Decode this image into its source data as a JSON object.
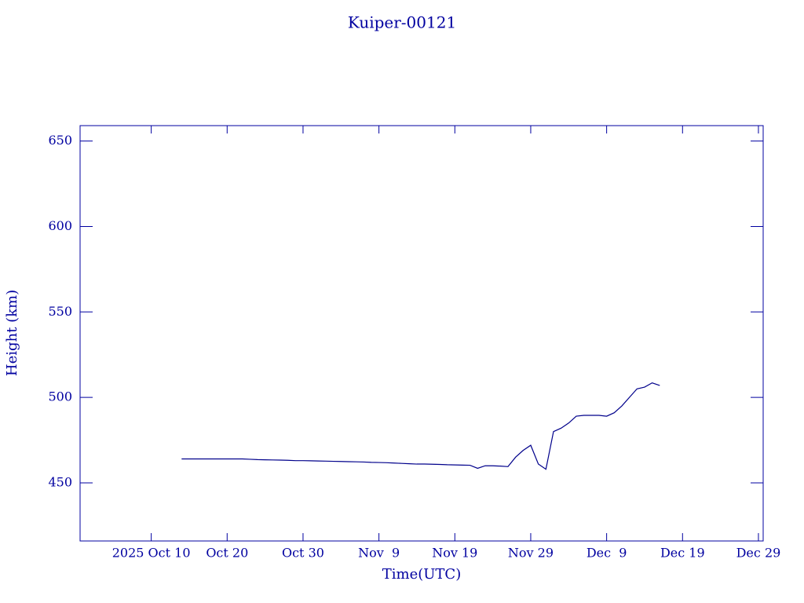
{
  "chart_data": {
    "type": "line",
    "title": "Kuiper-00121",
    "xlabel": "Time(UTC)",
    "ylabel": "Height (km)",
    "color": "#00008b",
    "xlim": [
      "2025-09-30T15:00Z",
      "2025-12-29T15:00Z"
    ],
    "xticks": [
      {
        "value": "2025-10-10",
        "label": "2025 Oct 10"
      },
      {
        "value": "2025-10-20",
        "label": "Oct 20"
      },
      {
        "value": "2025-10-30",
        "label": "Oct 30"
      },
      {
        "value": "2025-11-09",
        "label": "Nov  9"
      },
      {
        "value": "2025-11-19",
        "label": "Nov 19"
      },
      {
        "value": "2025-11-29",
        "label": "Nov 29"
      },
      {
        "value": "2025-12-09",
        "label": "Dec  9"
      },
      {
        "value": "2025-12-19",
        "label": "Dec 19"
      },
      {
        "value": "2025-12-29",
        "label": "Dec 29"
      }
    ],
    "ylim": [
      416,
      659
    ],
    "yticks": [
      450,
      500,
      550,
      600,
      650
    ],
    "x": [
      "2025-10-14",
      "2025-10-15",
      "2025-10-16",
      "2025-10-17",
      "2025-10-18",
      "2025-10-19",
      "2025-10-20",
      "2025-10-21",
      "2025-10-22",
      "2025-10-23",
      "2025-10-24",
      "2025-10-25",
      "2025-10-26",
      "2025-10-27",
      "2025-10-28",
      "2025-10-29",
      "2025-10-30",
      "2025-10-31",
      "2025-11-01",
      "2025-11-02",
      "2025-11-03",
      "2025-11-04",
      "2025-11-05",
      "2025-11-06",
      "2025-11-07",
      "2025-11-08",
      "2025-11-09",
      "2025-11-10",
      "2025-11-11",
      "2025-11-12",
      "2025-11-13",
      "2025-11-14",
      "2025-11-15",
      "2025-11-16",
      "2025-11-17",
      "2025-11-18",
      "2025-11-19",
      "2025-11-20",
      "2025-11-21",
      "2025-11-22",
      "2025-11-23",
      "2025-11-24",
      "2025-11-25",
      "2025-11-26",
      "2025-11-27",
      "2025-11-28",
      "2025-11-29",
      "2025-11-30",
      "2025-12-01",
      "2025-12-02",
      "2025-12-03",
      "2025-12-04",
      "2025-12-05",
      "2025-12-06",
      "2025-12-07",
      "2025-12-08",
      "2025-12-09",
      "2025-12-10",
      "2025-12-11",
      "2025-12-12",
      "2025-12-13",
      "2025-12-14",
      "2025-12-15",
      "2025-12-16"
    ],
    "values": [
      464,
      464,
      464,
      464,
      464,
      464,
      464,
      464,
      464,
      463.8,
      463.6,
      463.5,
      463.4,
      463.3,
      463.2,
      463,
      463,
      462.9,
      462.8,
      462.7,
      462.6,
      462.5,
      462.4,
      462.3,
      462.2,
      462,
      461.9,
      461.8,
      461.6,
      461.4,
      461.2,
      461,
      461,
      460.9,
      460.8,
      460.6,
      460.5,
      460.4,
      460.3,
      458.5,
      460,
      460,
      459.8,
      459.5,
      465,
      469,
      472,
      461,
      458,
      480,
      482,
      485,
      489,
      489.5,
      489.5,
      489.5,
      489,
      491,
      495,
      500,
      505,
      506,
      508.5,
      507
    ]
  }
}
